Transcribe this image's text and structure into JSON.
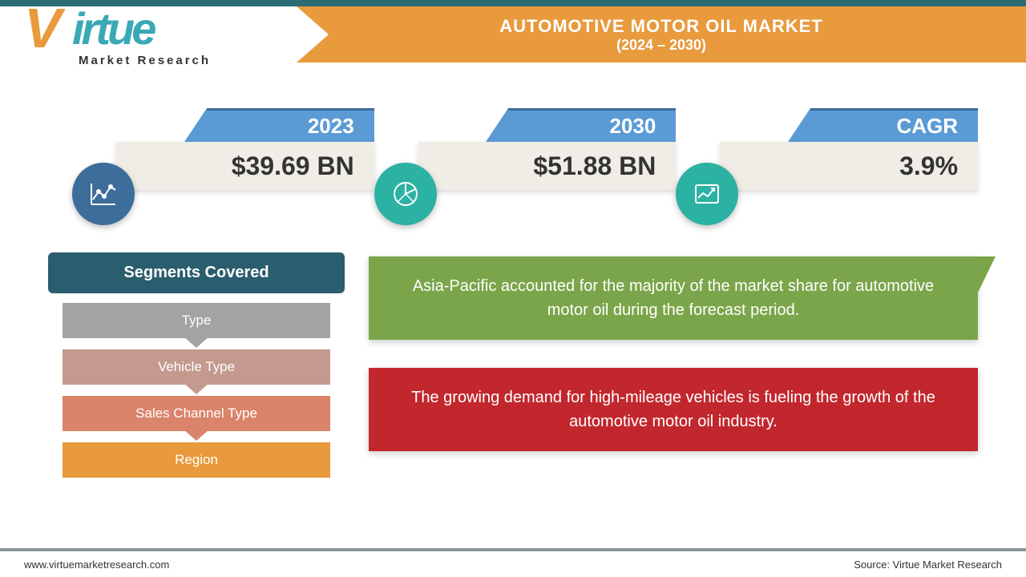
{
  "header": {
    "title": "AUTOMOTIVE MOTOR OIL MARKET",
    "period": "(2024 – 2030)",
    "banner_color": "#e89a3c",
    "topbar_color": "#2a6d72"
  },
  "logo": {
    "brand_part1": "V",
    "brand_part2": "irtue",
    "subtitle": "Market Research",
    "color_orange": "#e89a3c",
    "color_teal": "#3aa9b5"
  },
  "stats": [
    {
      "label": "2023",
      "value": "$39.69 BN",
      "icon": "line-chart",
      "icon_bg": "#3d6d9a"
    },
    {
      "label": "2030",
      "value": "$51.88 BN",
      "icon": "pie-chart",
      "icon_bg": "#2bb2a3"
    },
    {
      "label": "CAGR",
      "value": "3.9%",
      "icon": "growth-chart",
      "icon_bg": "#2bb2a3"
    }
  ],
  "stat_style": {
    "tab_color": "#5b9bd5",
    "tab_border": "#3d6d9a",
    "body_bg": "#f0ede6",
    "label_fontsize": 26,
    "value_fontsize": 32
  },
  "segments": {
    "header": "Segments Covered",
    "header_bg": "#2a5d6d",
    "items": [
      {
        "label": "Type",
        "bg": "#a3a3a3",
        "arrow": "#a3a3a3"
      },
      {
        "label": "Vehicle Type",
        "bg": "#c49a8e",
        "arrow": "#c49a8e"
      },
      {
        "label": "Sales Channel Type",
        "bg": "#d9846b",
        "arrow": "#d9846b"
      },
      {
        "label": "Region",
        "bg": "#e89a3c",
        "arrow": null
      }
    ]
  },
  "insights": [
    {
      "text": "Asia-Pacific accounted for the majority of the market share for automotive motor oil during the forecast period.",
      "bg": "#7ba54a",
      "has_arrow": true
    },
    {
      "text": "The growing demand for high-mileage vehicles is fueling the growth of the automotive motor oil industry.",
      "bg": "#c1272d",
      "has_arrow": false
    }
  ],
  "footer": {
    "url": "www.virtuemarketresearch.com",
    "source": "Source: Virtue Market Research"
  }
}
